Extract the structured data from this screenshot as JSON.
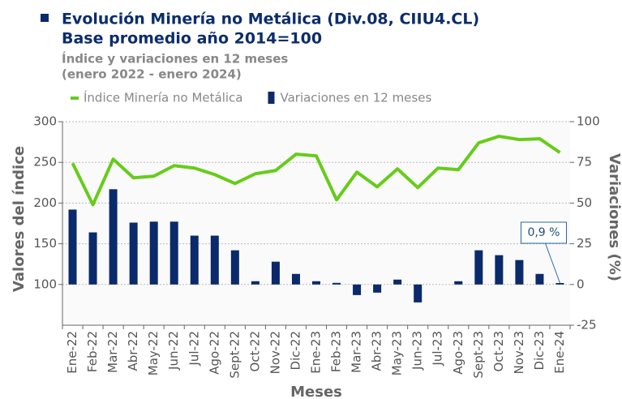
{
  "chart_data": {
    "type": "bar-line",
    "title": [
      "Evolución Minería no Metálica (Div.08, CIIU4.CL)",
      "Base promedio año 2014=100"
    ],
    "subtitle": [
      "Índice y variaciones en 12 meses",
      "(enero 2022 - enero 2024)"
    ],
    "xlabel": "Meses",
    "ylabel": "Valores del índice",
    "y2label": "Variaciones (%)",
    "categories": [
      "Ene-22",
      "Feb-22",
      "Mar-22",
      "Abr-22",
      "May-22",
      "Jun-22",
      "Jul-22",
      "Ago-22",
      "Sept-22",
      "Oct-22",
      "Nov-22",
      "Dic-22",
      "Ene-23",
      "Feb-23",
      "Mar-23",
      "Abr-23",
      "May-23",
      "Jun-23",
      "Jul-23",
      "Ago-23",
      "Sept-23",
      "Oct-23",
      "Nov-23",
      "Dic-23",
      "Ene-24"
    ],
    "series": [
      {
        "name": "Índice Minería no Metálica",
        "type": "line",
        "color": "#66cc1a",
        "values": [
          249,
          198,
          254,
          231,
          233,
          246,
          243,
          235,
          224,
          236,
          240,
          260,
          258,
          204,
          238,
          220,
          242,
          219,
          243,
          241,
          274,
          282,
          278,
          279,
          262
        ]
      },
      {
        "name": "Variaciones en 12 meses",
        "type": "bar",
        "axis": "y2",
        "color": "#0a2a6b",
        "values": [
          46,
          32,
          58.5,
          38,
          38.6,
          38.6,
          30,
          30,
          21,
          2,
          14,
          6.5,
          2,
          1,
          -6.5,
          -5,
          3,
          -11,
          0,
          2,
          21,
          18,
          15,
          6.5,
          0.9
        ],
        "value_labels": [
          null,
          null,
          null,
          null,
          null,
          null,
          null,
          null,
          null,
          null,
          null,
          null,
          null,
          null,
          null,
          null,
          null,
          null,
          null,
          null,
          null,
          null,
          null,
          null,
          "0,9 %"
        ]
      }
    ],
    "ylim": [
      50,
      300
    ],
    "yticks": [
      100,
      150,
      200,
      250,
      300
    ],
    "y2lim": [
      -25,
      100
    ],
    "y2ticks": [
      -25,
      0,
      25,
      50,
      75,
      100
    ],
    "grid": true
  }
}
